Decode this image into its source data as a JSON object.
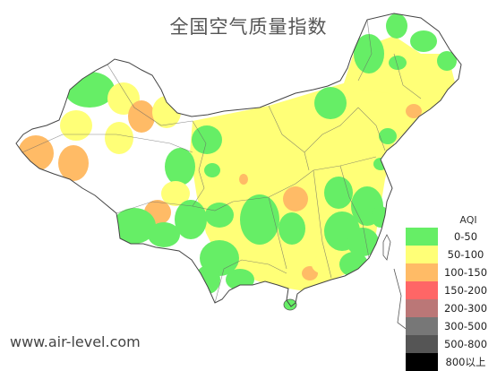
{
  "title": "全国空气质量指数",
  "watermark": "www.air-level.com",
  "legend": {
    "title": "AQI",
    "items": [
      {
        "label": "0-50",
        "color": "#66ee66"
      },
      {
        "label": "50-100",
        "color": "#ffff77"
      },
      {
        "label": "100-150",
        "color": "#ffbb66"
      },
      {
        "label": "150-200",
        "color": "#ff6666"
      },
      {
        "label": "200-300",
        "color": "#bb7777"
      },
      {
        "label": "300-500",
        "color": "#777777"
      },
      {
        "label": "500-800",
        "color": "#555555"
      },
      {
        "label": "800以上",
        "color": "#000000"
      }
    ]
  }
}
